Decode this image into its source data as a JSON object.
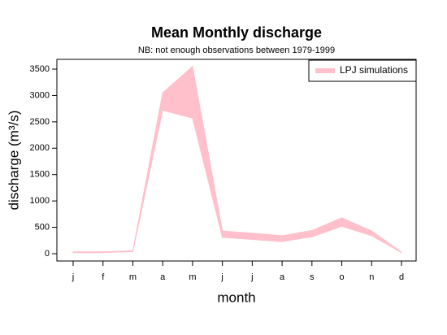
{
  "chart_data": {
    "type": "range-area",
    "title": "Mean Monthly discharge",
    "subtitle": "NB: not enough observations between 1979-1999",
    "x_label": "month",
    "y_label": "discharge (m³/s)",
    "categories": [
      "j",
      "f",
      "m",
      "a",
      "m",
      "j",
      "j",
      "a",
      "s",
      "o",
      "n",
      "d"
    ],
    "series": [
      {
        "name": "LPJ simulations",
        "color": "#ffc0cb",
        "lower": [
          20,
          20,
          40,
          2720,
          2570,
          310,
          270,
          230,
          320,
          520,
          340,
          20
        ],
        "upper": [
          35,
          35,
          55,
          3050,
          3550,
          430,
          390,
          340,
          440,
          680,
          430,
          30
        ]
      }
    ],
    "ylim": [
      -139,
      3685
    ],
    "yticks": [
      0,
      500,
      1000,
      1500,
      2000,
      2500,
      3000,
      3500
    ],
    "legend": "top-right"
  }
}
